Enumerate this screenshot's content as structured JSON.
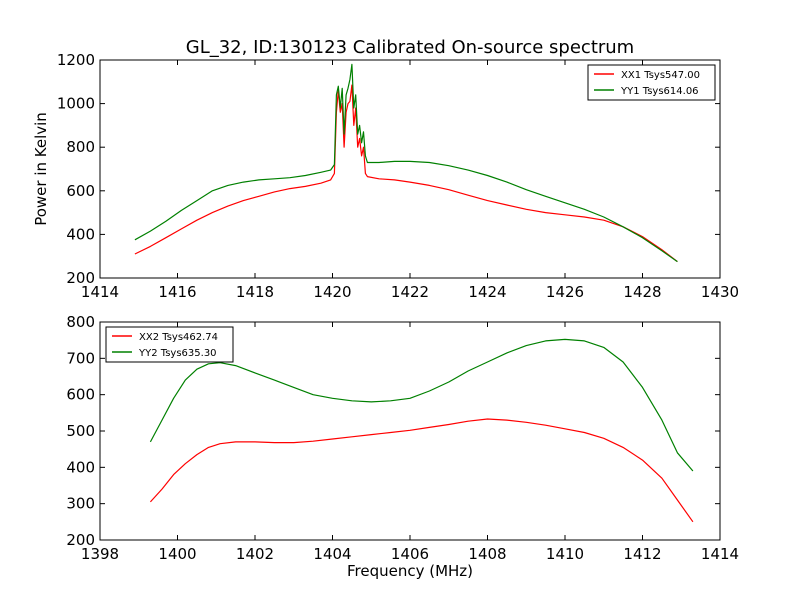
{
  "chart_data": [
    {
      "type": "line",
      "title": "GL_32, ID:130123 Calibrated On-source spectrum",
      "xlabel": "",
      "ylabel": "Power in Kelvin",
      "xlim": [
        1414,
        1430
      ],
      "ylim": [
        200,
        1200
      ],
      "xticks": [
        "1414",
        "1416",
        "1418",
        "1420",
        "1422",
        "1424",
        "1426",
        "1428",
        "1430"
      ],
      "yticks": [
        "200",
        "400",
        "600",
        "800",
        "1000",
        "1200"
      ],
      "grid": false,
      "legend_position": "top-right",
      "series": [
        {
          "name": "XX1 Tsys547.00",
          "color": "#ff0000",
          "points": [
            [
              1414.9,
              310
            ],
            [
              1415.3,
              345
            ],
            [
              1415.7,
              385
            ],
            [
              1416.1,
              425
            ],
            [
              1416.5,
              465
            ],
            [
              1416.9,
              500
            ],
            [
              1417.3,
              530
            ],
            [
              1417.7,
              555
            ],
            [
              1418.1,
              575
            ],
            [
              1418.5,
              595
            ],
            [
              1418.9,
              610
            ],
            [
              1419.3,
              620
            ],
            [
              1419.7,
              635
            ],
            [
              1419.95,
              650
            ],
            [
              1420.05,
              680
            ],
            [
              1420.1,
              960
            ],
            [
              1420.15,
              1060
            ],
            [
              1420.2,
              960
            ],
            [
              1420.25,
              1000
            ],
            [
              1420.3,
              800
            ],
            [
              1420.35,
              960
            ],
            [
              1420.4,
              1000
            ],
            [
              1420.45,
              1010
            ],
            [
              1420.5,
              1085
            ],
            [
              1420.55,
              900
            ],
            [
              1420.6,
              980
            ],
            [
              1420.65,
              800
            ],
            [
              1420.7,
              840
            ],
            [
              1420.75,
              760
            ],
            [
              1420.8,
              800
            ],
            [
              1420.85,
              680
            ],
            [
              1420.9,
              665
            ],
            [
              1421.2,
              655
            ],
            [
              1421.6,
              650
            ],
            [
              1422.0,
              640
            ],
            [
              1422.5,
              625
            ],
            [
              1423.0,
              605
            ],
            [
              1423.5,
              580
            ],
            [
              1424.0,
              555
            ],
            [
              1424.5,
              535
            ],
            [
              1425.0,
              515
            ],
            [
              1425.5,
              500
            ],
            [
              1426.0,
              490
            ],
            [
              1426.5,
              480
            ],
            [
              1427.0,
              465
            ],
            [
              1427.5,
              435
            ],
            [
              1428.0,
              390
            ],
            [
              1428.5,
              330
            ],
            [
              1428.9,
              275
            ]
          ]
        },
        {
          "name": "YY1 Tsys614.06",
          "color": "#008000",
          "points": [
            [
              1414.9,
              375
            ],
            [
              1415.3,
              415
            ],
            [
              1415.7,
              460
            ],
            [
              1416.1,
              510
            ],
            [
              1416.5,
              555
            ],
            [
              1416.9,
              600
            ],
            [
              1417.3,
              625
            ],
            [
              1417.7,
              640
            ],
            [
              1418.1,
              650
            ],
            [
              1418.5,
              655
            ],
            [
              1418.9,
              660
            ],
            [
              1419.3,
              670
            ],
            [
              1419.7,
              685
            ],
            [
              1419.95,
              695
            ],
            [
              1420.05,
              720
            ],
            [
              1420.1,
              1040
            ],
            [
              1420.15,
              1080
            ],
            [
              1420.2,
              980
            ],
            [
              1420.25,
              1070
            ],
            [
              1420.3,
              860
            ],
            [
              1420.35,
              1040
            ],
            [
              1420.4,
              1070
            ],
            [
              1420.45,
              1110
            ],
            [
              1420.5,
              1180
            ],
            [
              1420.55,
              980
            ],
            [
              1420.6,
              1040
            ],
            [
              1420.65,
              860
            ],
            [
              1420.7,
              900
            ],
            [
              1420.75,
              820
            ],
            [
              1420.8,
              870
            ],
            [
              1420.85,
              760
            ],
            [
              1420.9,
              730
            ],
            [
              1421.2,
              730
            ],
            [
              1421.6,
              735
            ],
            [
              1422.0,
              735
            ],
            [
              1422.5,
              730
            ],
            [
              1423.0,
              715
            ],
            [
              1423.5,
              695
            ],
            [
              1424.0,
              670
            ],
            [
              1424.5,
              640
            ],
            [
              1425.0,
              605
            ],
            [
              1425.5,
              575
            ],
            [
              1426.0,
              545
            ],
            [
              1426.5,
              515
            ],
            [
              1427.0,
              480
            ],
            [
              1427.5,
              435
            ],
            [
              1428.0,
              385
            ],
            [
              1428.5,
              325
            ],
            [
              1428.9,
              275
            ]
          ]
        }
      ]
    },
    {
      "type": "line",
      "title": "",
      "xlabel": "Frequency (MHz)",
      "ylabel": "",
      "xlim": [
        1398,
        1414
      ],
      "ylim": [
        200,
        800
      ],
      "xticks": [
        "1398",
        "1400",
        "1402",
        "1404",
        "1406",
        "1408",
        "1410",
        "1412",
        "1414"
      ],
      "yticks": [
        "200",
        "300",
        "400",
        "500",
        "600",
        "700",
        "800"
      ],
      "grid": false,
      "legend_position": "top-left",
      "series": [
        {
          "name": "XX2 Tsys462.74",
          "color": "#ff0000",
          "points": [
            [
              1399.3,
              305
            ],
            [
              1399.6,
              340
            ],
            [
              1399.9,
              380
            ],
            [
              1400.2,
              410
            ],
            [
              1400.5,
              435
            ],
            [
              1400.8,
              455
            ],
            [
              1401.1,
              465
            ],
            [
              1401.5,
              470
            ],
            [
              1402.0,
              470
            ],
            [
              1402.5,
              468
            ],
            [
              1403.0,
              468
            ],
            [
              1403.5,
              472
            ],
            [
              1404.0,
              478
            ],
            [
              1404.5,
              484
            ],
            [
              1405.0,
              490
            ],
            [
              1405.5,
              496
            ],
            [
              1406.0,
              502
            ],
            [
              1406.5,
              510
            ],
            [
              1407.0,
              518
            ],
            [
              1407.5,
              527
            ],
            [
              1408.0,
              533
            ],
            [
              1408.5,
              530
            ],
            [
              1409.0,
              524
            ],
            [
              1409.5,
              516
            ],
            [
              1410.0,
              506
            ],
            [
              1410.5,
              496
            ],
            [
              1411.0,
              480
            ],
            [
              1411.5,
              455
            ],
            [
              1412.0,
              420
            ],
            [
              1412.5,
              370
            ],
            [
              1412.9,
              310
            ],
            [
              1413.3,
              250
            ]
          ]
        },
        {
          "name": "YY2 Tsys635.30",
          "color": "#008000",
          "points": [
            [
              1399.3,
              470
            ],
            [
              1399.6,
              530
            ],
            [
              1399.9,
              590
            ],
            [
              1400.2,
              640
            ],
            [
              1400.5,
              670
            ],
            [
              1400.8,
              685
            ],
            [
              1401.1,
              688
            ],
            [
              1401.5,
              680
            ],
            [
              1402.0,
              660
            ],
            [
              1402.5,
              640
            ],
            [
              1403.0,
              620
            ],
            [
              1403.5,
              600
            ],
            [
              1404.0,
              590
            ],
            [
              1404.5,
              583
            ],
            [
              1405.0,
              580
            ],
            [
              1405.5,
              583
            ],
            [
              1406.0,
              590
            ],
            [
              1406.5,
              610
            ],
            [
              1407.0,
              635
            ],
            [
              1407.5,
              665
            ],
            [
              1408.0,
              690
            ],
            [
              1408.5,
              715
            ],
            [
              1409.0,
              735
            ],
            [
              1409.5,
              748
            ],
            [
              1410.0,
              752
            ],
            [
              1410.5,
              748
            ],
            [
              1411.0,
              730
            ],
            [
              1411.5,
              690
            ],
            [
              1412.0,
              620
            ],
            [
              1412.5,
              530
            ],
            [
              1412.9,
              440
            ],
            [
              1413.3,
              390
            ]
          ]
        }
      ]
    }
  ]
}
